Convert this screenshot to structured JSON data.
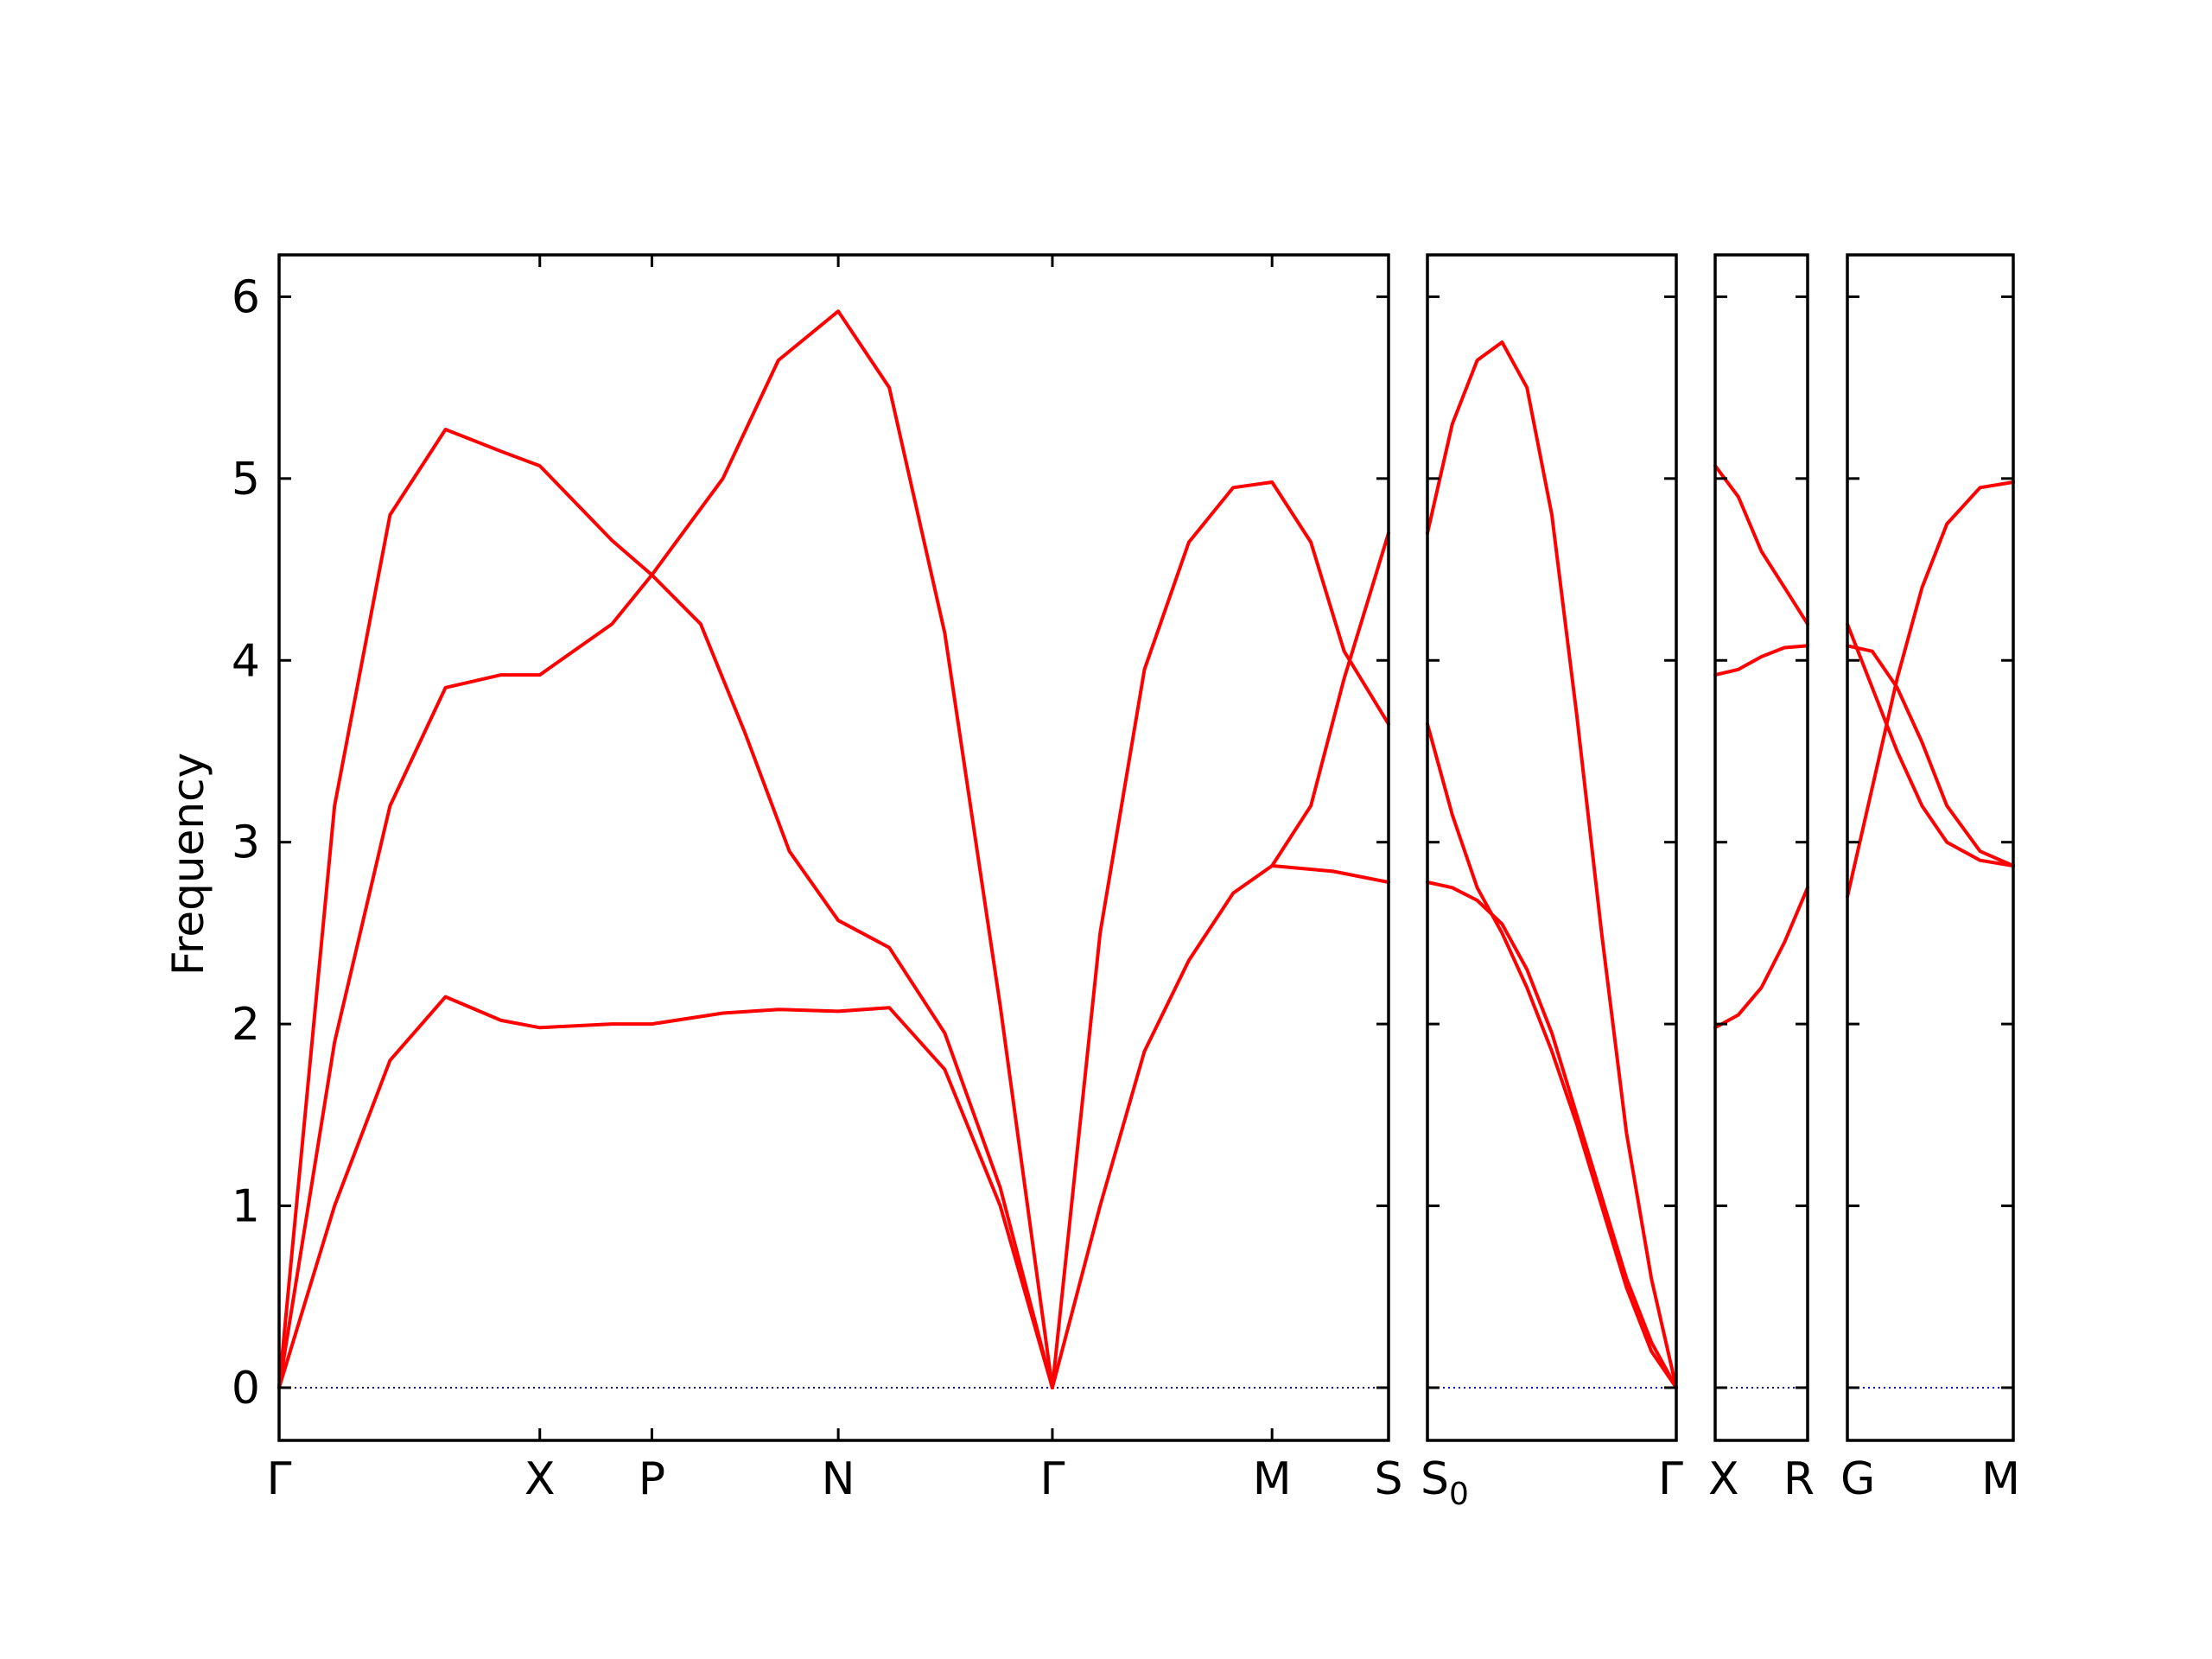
{
  "chart_data": {
    "type": "line",
    "title": "",
    "ylabel": "Frequency",
    "xlabel": "",
    "ylim": [
      -0.29,
      6.23
    ],
    "yticks": [
      0,
      1,
      2,
      3,
      4,
      5,
      6
    ],
    "grid": false,
    "legend": "none",
    "colors": {
      "band": "#ff0000",
      "zero_line": "#0000cc",
      "axes": "#000000"
    },
    "panels": [
      {
        "id": "p1",
        "x_range": [
          0,
          1
        ],
        "ticks": [
          {
            "x": 0,
            "label": "Γ"
          },
          {
            "x": 0.235,
            "label": "X"
          },
          {
            "x": 0.336,
            "label": "P"
          },
          {
            "x": 0.504,
            "label": "N"
          },
          {
            "x": 0.697,
            "label": "Γ"
          },
          {
            "x": 0.895,
            "label": "M"
          },
          {
            "x": 1,
            "label": "S"
          }
        ],
        "series": [
          {
            "points": [
              [
                0,
                0
              ],
              [
                0.05,
                3.2
              ],
              [
                0.1,
                4.8
              ],
              [
                0.15,
                5.27
              ],
              [
                0.2,
                5.15
              ],
              [
                0.235,
                5.07
              ],
              [
                0.3,
                4.66
              ],
              [
                0.336,
                4.47
              ],
              [
                0.4,
                5.0
              ],
              [
                0.45,
                5.65
              ],
              [
                0.504,
                5.92
              ],
              [
                0.55,
                5.5
              ],
              [
                0.6,
                4.15
              ],
              [
                0.65,
                2.1
              ],
              [
                0.697,
                0
              ]
            ]
          },
          {
            "points": [
              [
                0,
                0
              ],
              [
                0.05,
                1.9
              ],
              [
                0.1,
                3.2
              ],
              [
                0.15,
                3.85
              ],
              [
                0.2,
                3.92
              ],
              [
                0.235,
                3.92
              ],
              [
                0.3,
                4.2
              ],
              [
                0.336,
                4.47
              ],
              [
                0.38,
                4.2
              ],
              [
                0.42,
                3.6
              ],
              [
                0.46,
                2.95
              ],
              [
                0.504,
                2.57
              ],
              [
                0.55,
                2.42
              ],
              [
                0.6,
                1.95
              ],
              [
                0.65,
                1.1
              ],
              [
                0.697,
                0
              ]
            ]
          },
          {
            "points": [
              [
                0,
                0
              ],
              [
                0.05,
                1.0
              ],
              [
                0.1,
                1.8
              ],
              [
                0.15,
                2.15
              ],
              [
                0.2,
                2.02
              ],
              [
                0.235,
                1.98
              ],
              [
                0.3,
                2.0
              ],
              [
                0.336,
                2.0
              ],
              [
                0.4,
                2.06
              ],
              [
                0.45,
                2.08
              ],
              [
                0.504,
                2.07
              ],
              [
                0.55,
                2.09
              ],
              [
                0.6,
                1.75
              ],
              [
                0.65,
                1.0
              ],
              [
                0.697,
                0
              ]
            ]
          },
          {
            "points": [
              [
                0.697,
                0
              ],
              [
                0.74,
                2.5
              ],
              [
                0.78,
                3.95
              ],
              [
                0.82,
                4.65
              ],
              [
                0.86,
                4.95
              ],
              [
                0.895,
                4.98
              ],
              [
                0.93,
                4.65
              ],
              [
                0.96,
                4.05
              ],
              [
                1,
                3.65
              ]
            ]
          },
          {
            "points": [
              [
                0.697,
                0
              ],
              [
                0.74,
                1.0
              ],
              [
                0.78,
                1.85
              ],
              [
                0.82,
                2.35
              ],
              [
                0.86,
                2.72
              ],
              [
                0.895,
                2.87
              ],
              [
                0.93,
                3.2
              ],
              [
                0.96,
                3.9
              ],
              [
                1,
                4.7
              ]
            ]
          },
          {
            "points": [
              [
                0.895,
                2.87
              ],
              [
                0.95,
                2.84
              ],
              [
                1,
                2.78
              ]
            ]
          }
        ]
      },
      {
        "id": "p2",
        "x_range": [
          0,
          1
        ],
        "ticks": [
          {
            "x": 0,
            "label": "S",
            "sub": "0"
          },
          {
            "x": 1,
            "label": "Γ"
          }
        ],
        "series": [
          {
            "points": [
              [
                0,
                4.7
              ],
              [
                0.1,
                5.3
              ],
              [
                0.2,
                5.65
              ],
              [
                0.3,
                5.75
              ],
              [
                0.4,
                5.5
              ],
              [
                0.5,
                4.8
              ],
              [
                0.6,
                3.7
              ],
              [
                0.7,
                2.5
              ],
              [
                0.8,
                1.4
              ],
              [
                0.9,
                0.6
              ],
              [
                1,
                0
              ]
            ]
          },
          {
            "points": [
              [
                0,
                3.65
              ],
              [
                0.1,
                3.15
              ],
              [
                0.2,
                2.75
              ],
              [
                0.3,
                2.5
              ],
              [
                0.4,
                2.2
              ],
              [
                0.5,
                1.85
              ],
              [
                0.6,
                1.45
              ],
              [
                0.7,
                1.0
              ],
              [
                0.8,
                0.55
              ],
              [
                0.9,
                0.2
              ],
              [
                1,
                0
              ]
            ]
          },
          {
            "points": [
              [
                0,
                2.78
              ],
              [
                0.1,
                2.75
              ],
              [
                0.2,
                2.68
              ],
              [
                0.3,
                2.55
              ],
              [
                0.4,
                2.3
              ],
              [
                0.5,
                1.95
              ],
              [
                0.6,
                1.5
              ],
              [
                0.7,
                1.05
              ],
              [
                0.8,
                0.6
              ],
              [
                0.9,
                0.25
              ],
              [
                1,
                0
              ]
            ]
          }
        ]
      },
      {
        "id": "p3",
        "x_range": [
          0,
          1
        ],
        "ticks": [
          {
            "x": 0,
            "label": "X"
          },
          {
            "x": 1,
            "label": "R"
          }
        ],
        "series": [
          {
            "points": [
              [
                0,
                5.07
              ],
              [
                0.25,
                4.9
              ],
              [
                0.5,
                4.6
              ],
              [
                0.75,
                4.4
              ],
              [
                1,
                4.2
              ]
            ]
          },
          {
            "points": [
              [
                0,
                3.92
              ],
              [
                0.25,
                3.95
              ],
              [
                0.5,
                4.02
              ],
              [
                0.75,
                4.07
              ],
              [
                1,
                4.08
              ]
            ]
          },
          {
            "points": [
              [
                0,
                1.98
              ],
              [
                0.25,
                2.05
              ],
              [
                0.5,
                2.2
              ],
              [
                0.75,
                2.45
              ],
              [
                1,
                2.75
              ]
            ]
          }
        ]
      },
      {
        "id": "p4",
        "x_range": [
          0,
          1
        ],
        "ticks": [
          {
            "x": 0,
            "label": "G"
          },
          {
            "x": 1,
            "label": "M"
          }
        ],
        "series": [
          {
            "points": [
              [
                0,
                2.7
              ],
              [
                0.15,
                3.3
              ],
              [
                0.3,
                3.9
              ],
              [
                0.45,
                4.4
              ],
              [
                0.6,
                4.75
              ],
              [
                0.8,
                4.95
              ],
              [
                1,
                4.98
              ]
            ]
          },
          {
            "points": [
              [
                0,
                4.2
              ],
              [
                0.15,
                3.85
              ],
              [
                0.3,
                3.5
              ],
              [
                0.45,
                3.2
              ],
              [
                0.6,
                3.0
              ],
              [
                0.8,
                2.9
              ],
              [
                1,
                2.87
              ]
            ]
          },
          {
            "points": [
              [
                0,
                4.08
              ],
              [
                0.15,
                4.05
              ],
              [
                0.3,
                3.85
              ],
              [
                0.45,
                3.55
              ],
              [
                0.6,
                3.2
              ],
              [
                0.8,
                2.95
              ],
              [
                1,
                2.87
              ]
            ]
          }
        ]
      }
    ]
  }
}
